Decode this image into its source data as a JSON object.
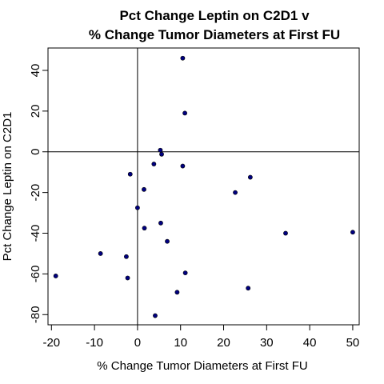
{
  "chart_data": {
    "type": "scatter",
    "title_line1": "Pct Change Leptin on C2D1 v",
    "title_line2": "% Change Tumor Diameters at First FU",
    "xlabel": "% Change Tumor Diameters at First FU",
    "ylabel": "Pct Change Leptin on C2D1",
    "xlim": [
      -20.8,
      51.5
    ],
    "ylim": [
      -85,
      51
    ],
    "xticks": [
      -20,
      -10,
      0,
      10,
      20,
      30,
      40,
      50
    ],
    "yticks": [
      -80,
      -60,
      -40,
      -20,
      0,
      20,
      40
    ],
    "reference_lines": {
      "x": 0,
      "y": 0
    },
    "point_color": "#000080",
    "grid": false,
    "legend": "none",
    "points": [
      {
        "x": 10.5,
        "y": 46
      },
      {
        "x": 11.0,
        "y": 19
      },
      {
        "x": 5.3,
        "y": 0.8
      },
      {
        "x": 5.6,
        "y": -1.2
      },
      {
        "x": 3.8,
        "y": -6
      },
      {
        "x": 10.5,
        "y": -7
      },
      {
        "x": -1.7,
        "y": -11
      },
      {
        "x": 26.2,
        "y": -12.5
      },
      {
        "x": 1.5,
        "y": -18.5
      },
      {
        "x": 22.7,
        "y": -20
      },
      {
        "x": 0.0,
        "y": -27.5
      },
      {
        "x": 5.4,
        "y": -35
      },
      {
        "x": 1.6,
        "y": -37.5
      },
      {
        "x": 34.4,
        "y": -40
      },
      {
        "x": 50.0,
        "y": -39.5
      },
      {
        "x": 6.9,
        "y": -44
      },
      {
        "x": -8.6,
        "y": -50
      },
      {
        "x": -2.6,
        "y": -51.5
      },
      {
        "x": 11.1,
        "y": -59.5
      },
      {
        "x": -19.0,
        "y": -61
      },
      {
        "x": -2.3,
        "y": -62
      },
      {
        "x": 25.7,
        "y": -67
      },
      {
        "x": 9.2,
        "y": -69
      },
      {
        "x": 4.1,
        "y": -80.5
      }
    ]
  }
}
